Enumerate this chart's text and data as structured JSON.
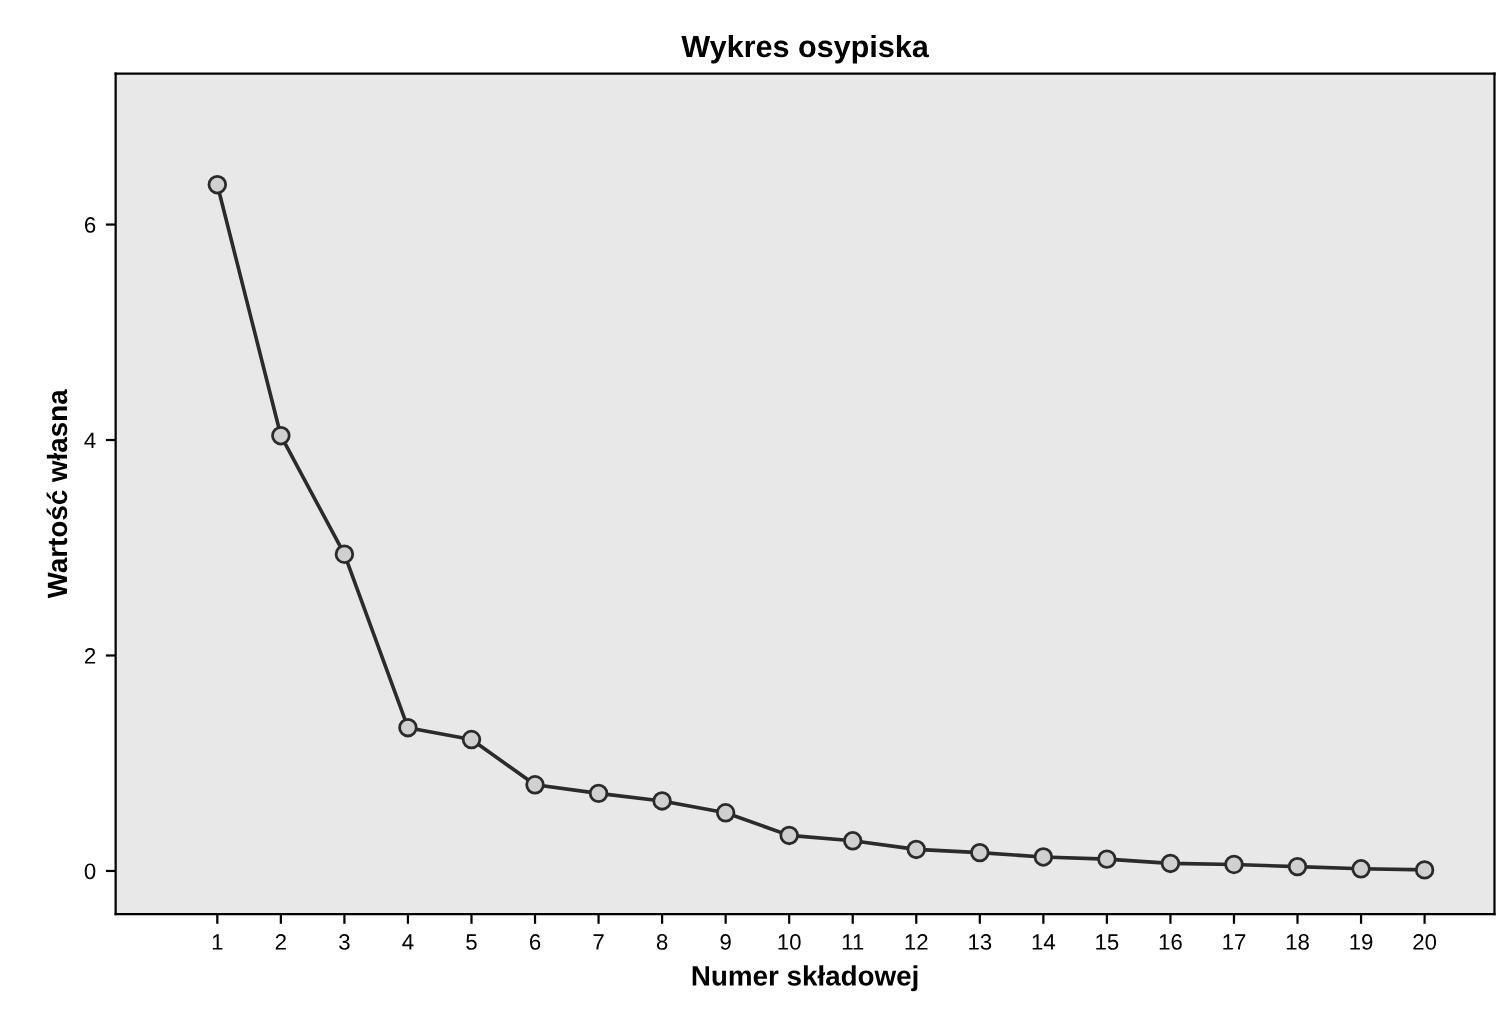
{
  "chart_data": {
    "type": "line",
    "title": "Wykres osypiska",
    "xlabel": "Numer składowej",
    "ylabel": "Wartość własna",
    "x": [
      1,
      2,
      3,
      4,
      5,
      6,
      7,
      8,
      9,
      10,
      11,
      12,
      13,
      14,
      15,
      16,
      17,
      18,
      19,
      20
    ],
    "series": [
      {
        "color": "#2b2b2b",
        "values": [
          6.37,
          4.04,
          2.94,
          1.33,
          1.22,
          0.8,
          0.72,
          0.65,
          0.54,
          0.33,
          0.28,
          0.2,
          0.17,
          0.13,
          0.11,
          0.07,
          0.06,
          0.04,
          0.02,
          0.01
        ]
      }
    ],
    "xlim": [
      -0.6,
      21.1
    ],
    "ylim": [
      -0.4,
      7.4
    ],
    "xticks": [
      1,
      2,
      3,
      4,
      5,
      6,
      7,
      8,
      9,
      10,
      11,
      12,
      13,
      14,
      15,
      16,
      17,
      18,
      19,
      20
    ],
    "yticks": [
      0,
      2,
      4,
      6
    ],
    "marker": "circle",
    "line_style": "solid",
    "grid": false,
    "legend": false
  }
}
